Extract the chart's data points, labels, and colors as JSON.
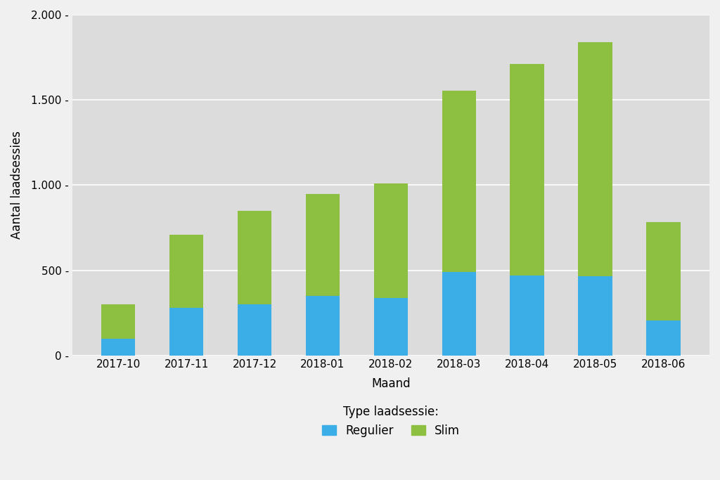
{
  "categories": [
    "2017-10",
    "2017-11",
    "2017-12",
    "2018-01",
    "2018-02",
    "2018-03",
    "2018-04",
    "2018-05",
    "2018-06"
  ],
  "regulier": [
    100,
    280,
    300,
    350,
    340,
    490,
    470,
    465,
    205
  ],
  "slim": [
    200,
    430,
    550,
    600,
    670,
    1065,
    1240,
    1375,
    580
  ],
  "color_regulier": "#3BAEE8",
  "color_slim": "#8DC040",
  "ylabel": "Aantal laadsessies",
  "xlabel": "Maand",
  "legend_title": "Type laadsessie:",
  "legend_regulier": "Regulier",
  "legend_slim": "Slim",
  "ylim": [
    0,
    2000
  ],
  "yticks": [
    0,
    500,
    1000,
    1500,
    2000
  ],
  "ytick_labels": [
    "0 -",
    "500 -",
    "1.000 -",
    "1.500 -",
    "2.000 -"
  ],
  "plot_bg_color": "#DCDCDC",
  "fig_bg_color": "#F0F0F0",
  "grid_color": "#FFFFFF",
  "bar_width": 0.5
}
